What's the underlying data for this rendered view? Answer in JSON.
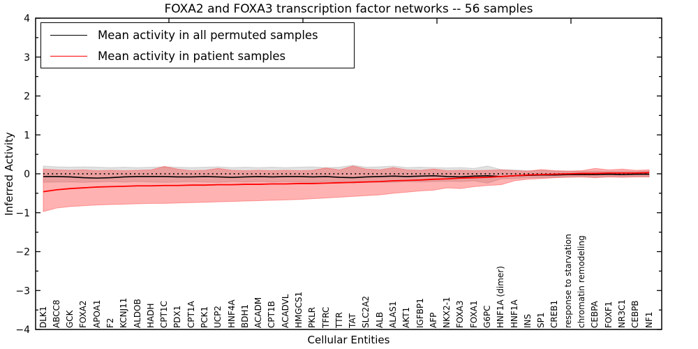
{
  "title": "FOXA2 and FOXA3 transcription factor networks -- 56 samples",
  "axes": {
    "xlabel": "Cellular Entities",
    "ylabel": "Inferred Activity",
    "ylim": [
      -4,
      4
    ],
    "ytick_step": 1,
    "yminor_step": 0.5
  },
  "legend": {
    "position": "upper left",
    "entries": [
      {
        "label": "Mean activity in all permuted samples",
        "color": "#000000"
      },
      {
        "label": "Mean activity in patient samples",
        "color": "#ff0000"
      }
    ]
  },
  "colors": {
    "permuted_line": "#000000",
    "patient_line": "#ff0000",
    "permuted_band": "#888888",
    "patient_band": "#ff0000",
    "zero_line": "#000000",
    "frame": "#000000"
  },
  "chart_data": {
    "type": "line",
    "title": "FOXA2 and FOXA3 transcription factor networks -- 56 samples",
    "xlabel": "Cellular Entities",
    "ylabel": "Inferred Activity",
    "ylim": [
      -4,
      4
    ],
    "yticks": [
      4,
      3,
      2,
      1,
      0,
      -1,
      -2,
      -3,
      -4
    ],
    "grid": false,
    "legend_position": "upper left",
    "zero_reference_line": 0,
    "categories": [
      "DLK1",
      "ABCC8",
      "GCK",
      "FOXA2",
      "APOA1",
      "F2",
      "KCNJ11",
      "ALDOB",
      "HADH",
      "CPT1C",
      "PDX1",
      "CPT1A",
      "PCK1",
      "UCP2",
      "HNF4A",
      "BDH1",
      "ACADM",
      "CPT1B",
      "ACADVL",
      "HMGCS1",
      "PKLR",
      "TFRC",
      "TTR",
      "TAT",
      "SLC2A2",
      "ALB",
      "ALAS1",
      "AKT1",
      "IGFBP1",
      "AFP",
      "NKX2-1",
      "FOXA3",
      "FOXA1",
      "G6PC",
      "HNF1A (dimer)",
      "HNF1A",
      "INS",
      "SP1",
      "CREB1",
      "response to starvation",
      "chromatin remodeling",
      "CEBPA",
      "FOXF1",
      "NR3C1",
      "CEBPB",
      "NF1"
    ],
    "series": [
      {
        "name": "Mean activity in all permuted samples",
        "color": "#000000",
        "mean": [
          -0.07,
          -0.07,
          -0.08,
          -0.1,
          -0.11,
          -0.1,
          -0.08,
          -0.07,
          -0.07,
          -0.07,
          -0.08,
          -0.08,
          -0.07,
          -0.08,
          -0.09,
          -0.08,
          -0.07,
          -0.08,
          -0.07,
          -0.07,
          -0.08,
          -0.07,
          -0.09,
          -0.1,
          -0.08,
          -0.07,
          -0.06,
          -0.07,
          -0.06,
          -0.05,
          -0.07,
          -0.08,
          -0.06,
          -0.05,
          -0.07,
          -0.05,
          -0.04,
          -0.03,
          -0.03,
          -0.02,
          -0.02,
          -0.02,
          -0.01,
          -0.02,
          -0.01,
          -0.01
        ],
        "band_upper": [
          0.2,
          0.18,
          0.17,
          0.18,
          0.17,
          0.16,
          0.17,
          0.16,
          0.17,
          0.18,
          0.17,
          0.16,
          0.17,
          0.18,
          0.16,
          0.17,
          0.16,
          0.17,
          0.16,
          0.17,
          0.18,
          0.16,
          0.17,
          0.22,
          0.17,
          0.18,
          0.2,
          0.16,
          0.17,
          0.16,
          0.15,
          0.16,
          0.14,
          0.2,
          0.11,
          0.1,
          0.08,
          0.08,
          0.07,
          0.07,
          0.06,
          0.07,
          0.06,
          0.07,
          0.06,
          0.07
        ],
        "band_lower": [
          -0.22,
          -0.21,
          -0.21,
          -0.22,
          -0.21,
          -0.2,
          -0.21,
          -0.2,
          -0.21,
          -0.22,
          -0.21,
          -0.2,
          -0.21,
          -0.22,
          -0.2,
          -0.21,
          -0.2,
          -0.21,
          -0.2,
          -0.21,
          -0.22,
          -0.2,
          -0.21,
          -0.24,
          -0.21,
          -0.22,
          -0.22,
          -0.2,
          -0.21,
          -0.2,
          -0.19,
          -0.2,
          -0.18,
          -0.24,
          -0.13,
          -0.12,
          -0.1,
          -0.1,
          -0.09,
          -0.08,
          -0.08,
          -0.08,
          -0.07,
          -0.08,
          -0.07,
          -0.08
        ]
      },
      {
        "name": "Mean activity in patient samples",
        "color": "#ff0000",
        "mean": [
          -0.46,
          -0.41,
          -0.38,
          -0.36,
          -0.34,
          -0.33,
          -0.32,
          -0.31,
          -0.31,
          -0.3,
          -0.3,
          -0.29,
          -0.29,
          -0.28,
          -0.28,
          -0.27,
          -0.27,
          -0.26,
          -0.26,
          -0.25,
          -0.25,
          -0.24,
          -0.23,
          -0.22,
          -0.21,
          -0.2,
          -0.18,
          -0.17,
          -0.16,
          -0.14,
          -0.13,
          -0.11,
          -0.1,
          -0.09,
          -0.07,
          -0.05,
          -0.03,
          -0.02,
          -0.01,
          0.0,
          0.01,
          0.01,
          0.02,
          0.02,
          0.02,
          0.03
        ],
        "band_upper": [
          0.12,
          0.1,
          0.09,
          0.1,
          0.08,
          0.09,
          0.08,
          0.09,
          0.1,
          0.19,
          0.12,
          0.08,
          0.09,
          0.14,
          0.09,
          0.08,
          0.09,
          0.08,
          0.09,
          0.08,
          0.09,
          0.15,
          0.1,
          0.2,
          0.12,
          0.1,
          0.16,
          0.1,
          0.09,
          0.12,
          0.08,
          0.09,
          0.08,
          0.09,
          0.1,
          0.08,
          0.07,
          0.11,
          0.08,
          0.07,
          0.08,
          0.14,
          0.1,
          0.12,
          0.09,
          0.1
        ],
        "band_lower": [
          -0.97,
          -0.88,
          -0.84,
          -0.82,
          -0.8,
          -0.79,
          -0.78,
          -0.77,
          -0.76,
          -0.76,
          -0.75,
          -0.74,
          -0.73,
          -0.72,
          -0.71,
          -0.7,
          -0.69,
          -0.68,
          -0.67,
          -0.66,
          -0.64,
          -0.62,
          -0.6,
          -0.58,
          -0.56,
          -0.54,
          -0.5,
          -0.47,
          -0.44,
          -0.42,
          -0.36,
          -0.38,
          -0.33,
          -0.3,
          -0.28,
          -0.18,
          -0.14,
          -0.12,
          -0.1,
          -0.09,
          -0.08,
          -0.1,
          -0.08,
          -0.09,
          -0.08,
          -0.08
        ]
      }
    ]
  }
}
